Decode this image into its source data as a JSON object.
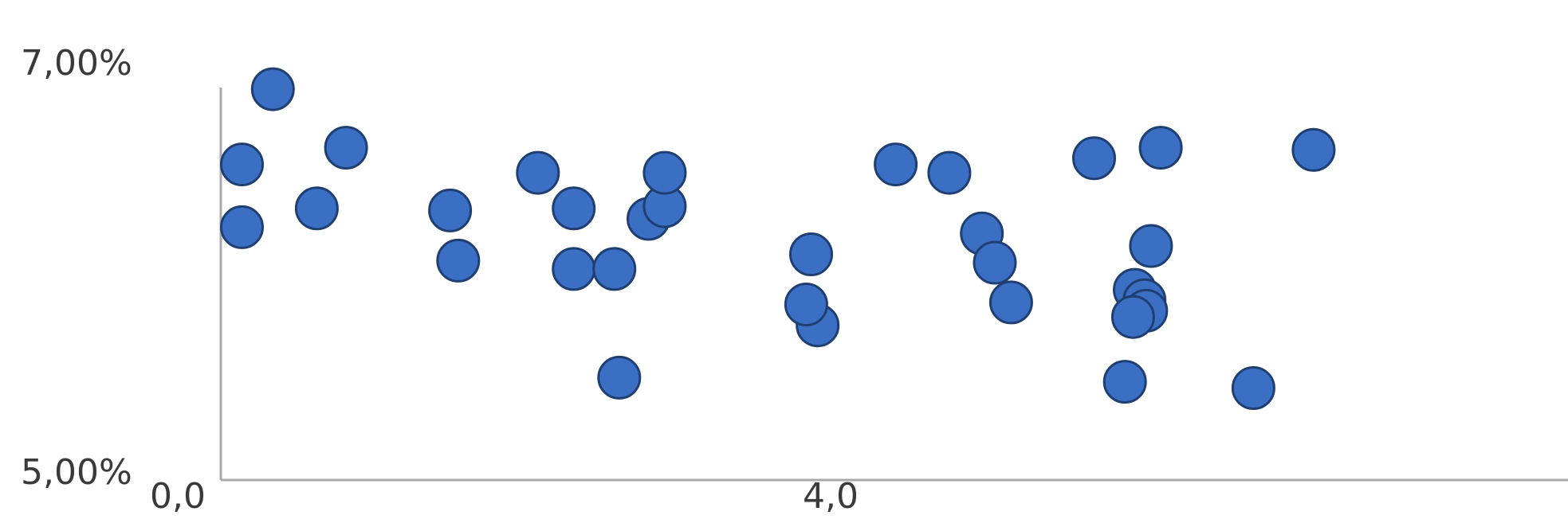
{
  "chart_data": {
    "type": "scatter",
    "title": "",
    "xlabel": "",
    "ylabel": "",
    "xlim": [
      0.0,
      8.36
    ],
    "ylim": [
      5.0,
      7.0
    ],
    "grid": false,
    "x_tick_labels": [
      {
        "value": 0.0,
        "label": "0,0"
      },
      {
        "value": 4.0,
        "label": "4,0"
      }
    ],
    "y_tick_labels": [
      {
        "value": 7.0,
        "label": "7,00%"
      },
      {
        "value": 5.0,
        "label": "5,00%"
      }
    ],
    "point_color": "#3a6fc4",
    "point_edge_color": "#1f3f73",
    "series": [
      {
        "points": [
          {
            "x": 0.13,
            "y": 6.51
          },
          {
            "x": 0.13,
            "y": 6.21
          },
          {
            "x": 0.32,
            "y": 6.87
          },
          {
            "x": 0.59,
            "y": 6.3
          },
          {
            "x": 0.77,
            "y": 6.59
          },
          {
            "x": 1.41,
            "y": 6.29
          },
          {
            "x": 1.46,
            "y": 6.05
          },
          {
            "x": 1.95,
            "y": 6.47
          },
          {
            "x": 2.17,
            "y": 6.3
          },
          {
            "x": 2.17,
            "y": 6.01
          },
          {
            "x": 2.42,
            "y": 6.01
          },
          {
            "x": 2.45,
            "y": 5.49
          },
          {
            "x": 2.63,
            "y": 6.25
          },
          {
            "x": 2.73,
            "y": 6.31
          },
          {
            "x": 2.73,
            "y": 6.47
          },
          {
            "x": 3.67,
            "y": 5.74
          },
          {
            "x": 3.6,
            "y": 5.84
          },
          {
            "x": 3.63,
            "y": 6.08
          },
          {
            "x": 4.15,
            "y": 6.51
          },
          {
            "x": 4.48,
            "y": 6.47
          },
          {
            "x": 4.68,
            "y": 6.18
          },
          {
            "x": 4.76,
            "y": 6.04
          },
          {
            "x": 4.86,
            "y": 5.85
          },
          {
            "x": 5.37,
            "y": 6.54
          },
          {
            "x": 5.78,
            "y": 6.59
          },
          {
            "x": 5.72,
            "y": 6.12
          },
          {
            "x": 5.62,
            "y": 5.91
          },
          {
            "x": 5.68,
            "y": 5.86
          },
          {
            "x": 5.69,
            "y": 5.81
          },
          {
            "x": 5.61,
            "y": 5.78
          },
          {
            "x": 5.56,
            "y": 5.47
          },
          {
            "x": 6.35,
            "y": 5.44
          },
          {
            "x": 6.72,
            "y": 6.58
          }
        ]
      }
    ]
  }
}
